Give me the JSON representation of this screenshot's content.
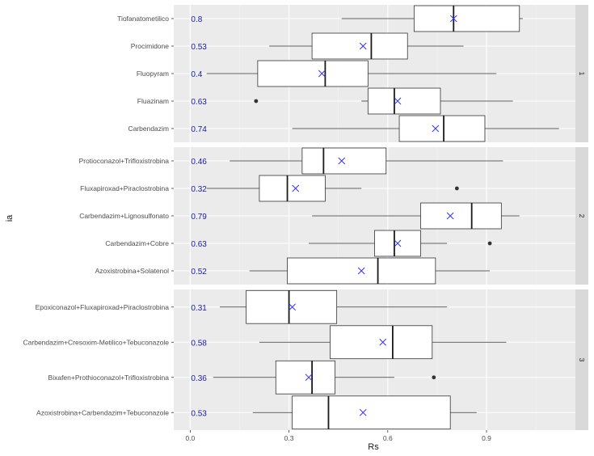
{
  "chart_data": {
    "type": "boxplot",
    "xlabel": "Rs",
    "ylabel": "ia",
    "xlim": [
      -0.05,
      1.17
    ],
    "xticks": [
      0.0,
      0.3,
      0.6,
      0.9
    ],
    "xtick_labels": [
      "0.0",
      "0.3",
      "0.6",
      "0.9"
    ],
    "grid": true,
    "panel_background": "#ebebeb",
    "strip_background": "#d9d9d9",
    "mean_marker_color": "#3333ff",
    "value_label_color": "#1a1aa0",
    "facets": [
      {
        "strip": "1",
        "items": [
          {
            "label": "Tiofanatometilico",
            "value_label": "0.8",
            "whisker_low": 0.46,
            "q1": 0.68,
            "median": 0.8,
            "q3": 1.0,
            "whisker_high": 1.01,
            "mean": 0.8,
            "outliers": []
          },
          {
            "label": "Procimidone",
            "value_label": "0.53",
            "whisker_low": 0.24,
            "q1": 0.37,
            "median": 0.55,
            "q3": 0.66,
            "whisker_high": 0.83,
            "mean": 0.525,
            "outliers": []
          },
          {
            "label": "Fluopyram",
            "value_label": "0.4",
            "whisker_low": 0.05,
            "q1": 0.205,
            "median": 0.41,
            "q3": 0.54,
            "whisker_high": 0.93,
            "mean": 0.4,
            "outliers": []
          },
          {
            "label": "Fluazinam",
            "value_label": "0.63",
            "whisker_low": 0.52,
            "q1": 0.54,
            "median": 0.62,
            "q3": 0.76,
            "whisker_high": 0.98,
            "mean": 0.63,
            "outliers": [
              0.2
            ]
          },
          {
            "label": "Carbendazim",
            "value_label": "0.74",
            "whisker_low": 0.31,
            "q1": 0.635,
            "median": 0.77,
            "q3": 0.895,
            "whisker_high": 1.12,
            "mean": 0.745,
            "outliers": []
          }
        ]
      },
      {
        "strip": "2",
        "items": [
          {
            "label": "Protioconazol+Trifloxistrobina",
            "value_label": "0.46",
            "whisker_low": 0.12,
            "q1": 0.34,
            "median": 0.405,
            "q3": 0.595,
            "whisker_high": 0.95,
            "mean": 0.46,
            "outliers": []
          },
          {
            "label": "Fluxapiroxad+Piraclostrobina",
            "value_label": "0.32",
            "whisker_low": 0.05,
            "q1": 0.21,
            "median": 0.295,
            "q3": 0.41,
            "whisker_high": 0.52,
            "mean": 0.32,
            "outliers": [
              0.81
            ]
          },
          {
            "label": "Carbendazim+Lignosulfonato",
            "value_label": "0.79",
            "whisker_low": 0.37,
            "q1": 0.7,
            "median": 0.855,
            "q3": 0.945,
            "whisker_high": 1.0,
            "mean": 0.79,
            "outliers": []
          },
          {
            "label": "Carbendazim+Cobre",
            "value_label": "0.63",
            "whisker_low": 0.36,
            "q1": 0.56,
            "median": 0.62,
            "q3": 0.7,
            "whisker_high": 0.78,
            "mean": 0.63,
            "outliers": [
              0.91
            ]
          },
          {
            "label": "Azoxistrobina+Solatenol",
            "value_label": "0.52",
            "whisker_low": 0.18,
            "q1": 0.295,
            "median": 0.57,
            "q3": 0.745,
            "whisker_high": 0.91,
            "mean": 0.52,
            "outliers": []
          }
        ]
      },
      {
        "strip": "3",
        "items": [
          {
            "label": "Epoxiconazol+Fluxapiroxad+Piraclostrobina",
            "value_label": "0.31",
            "whisker_low": 0.09,
            "q1": 0.17,
            "median": 0.3,
            "q3": 0.445,
            "whisker_high": 0.78,
            "mean": 0.31,
            "outliers": []
          },
          {
            "label": "Carbendazim+Cresoxim-Metilico+Tebuconazole",
            "value_label": "0.58",
            "whisker_low": 0.21,
            "q1": 0.425,
            "median": 0.615,
            "q3": 0.735,
            "whisker_high": 0.96,
            "mean": 0.585,
            "outliers": []
          },
          {
            "label": "Bixafen+Prothioconazol+Trifloxistrobina",
            "value_label": "0.36",
            "whisker_low": 0.07,
            "q1": 0.26,
            "median": 0.37,
            "q3": 0.44,
            "whisker_high": 0.62,
            "mean": 0.36,
            "outliers": [
              0.74
            ]
          },
          {
            "label": "Azoxistrobina+Carbendazim+Tebuconazole",
            "value_label": "0.53",
            "whisker_low": 0.19,
            "q1": 0.31,
            "median": 0.42,
            "q3": 0.79,
            "whisker_high": 0.87,
            "mean": 0.525,
            "outliers": []
          }
        ]
      }
    ]
  }
}
